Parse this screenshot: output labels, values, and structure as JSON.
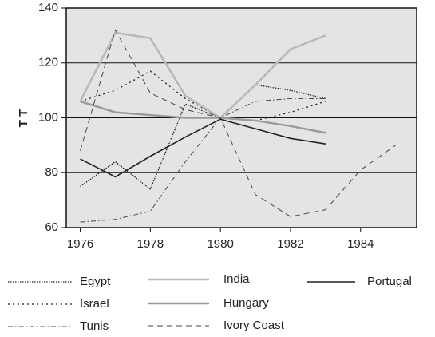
{
  "chart_data": {
    "type": "line",
    "ylabel": "T T",
    "x": [
      1976,
      1977,
      1978,
      1979,
      1980,
      1981,
      1982,
      1983,
      1984,
      1985
    ],
    "xlim": [
      1975.6,
      1985.6
    ],
    "xticks": [
      1976,
      1978,
      1980,
      1982,
      1984
    ],
    "ylim": [
      60,
      140
    ],
    "yticks": [
      60,
      80,
      100,
      120,
      140
    ],
    "grid": true,
    "legend": "bottom",
    "series": [
      {
        "name": "Egypt",
        "color": "#222222",
        "dash": "1.5 1.5",
        "width": 1.3,
        "values": [
          75,
          84,
          74,
          105,
          100,
          112,
          110,
          107,
          null,
          null
        ]
      },
      {
        "name": "Israel",
        "color": "#222222",
        "dash": "2 4",
        "width": 1.3,
        "values": [
          106,
          110,
          117,
          107,
          100,
          99,
          102,
          106,
          null,
          null
        ]
      },
      {
        "name": "Tunis",
        "color": "#444444",
        "dash": "6 3 1.5 3",
        "width": 1,
        "values": [
          62,
          63,
          66,
          84,
          100,
          106,
          107,
          107,
          null,
          null
        ]
      },
      {
        "name": "India",
        "color": "#b8b8b8",
        "dash": "none",
        "width": 2.5,
        "values": [
          106,
          131,
          129,
          108,
          100,
          112,
          125,
          130,
          null,
          null
        ]
      },
      {
        "name": "Hungary",
        "color": "#9a9a9a",
        "dash": "none",
        "width": 2.5,
        "values": [
          106,
          102,
          101,
          100,
          100,
          99,
          97,
          94.5,
          null,
          null
        ]
      },
      {
        "name": "Ivory Coast",
        "color": "#444444",
        "dash": "7 5",
        "width": 1,
        "values": [
          88,
          132,
          109,
          103,
          100,
          72,
          64,
          66.5,
          81,
          90
        ]
      },
      {
        "name": "Portugal",
        "color": "#222222",
        "dash": "none",
        "width": 1.6,
        "values": [
          85,
          78.5,
          86,
          93,
          99.5,
          96,
          92.5,
          90.5,
          null,
          null
        ]
      }
    ]
  }
}
